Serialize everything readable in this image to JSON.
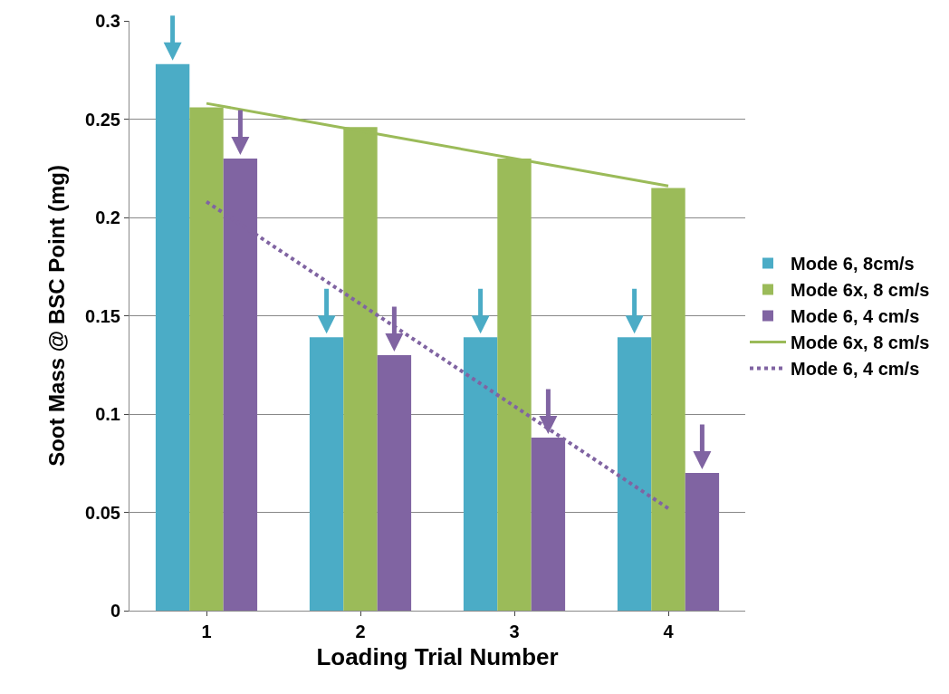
{
  "chart_data": {
    "type": "bar",
    "xlabel": "Loading Trial Number",
    "ylabel": "Soot Mass @ BSC Point (mg)",
    "categories": [
      "1",
      "2",
      "3",
      "4"
    ],
    "series": [
      {
        "name": "Mode 6, 8cm/s",
        "color": "#4bacc6",
        "values": [
          0.278,
          0.139,
          0.139,
          0.139
        ]
      },
      {
        "name": "Mode 6x, 8 cm/s",
        "color": "#9bbb59",
        "values": [
          0.256,
          0.246,
          0.23,
          0.215
        ]
      },
      {
        "name": "Mode 6, 4 cm/s",
        "color": "#8064a2",
        "values": [
          0.23,
          0.13,
          0.088,
          0.07
        ]
      },
      {
        "name": "Mode 6x, 8 cm/s",
        "color": "#9bbb59",
        "type": "line",
        "line_style": "solid",
        "values": [
          0.258,
          0.244,
          0.23,
          0.216
        ]
      },
      {
        "name": "Mode 6, 4 cm/s",
        "color": "#8064a2",
        "type": "line",
        "line_style": "dotted",
        "values": [
          0.208,
          0.156,
          0.104,
          0.052
        ]
      }
    ],
    "ylim": [
      0,
      0.3
    ],
    "yticks": [
      0,
      0.05,
      0.1,
      0.15,
      0.2,
      0.25,
      0.3
    ],
    "grid": "y",
    "legend": "right",
    "marker": "none"
  }
}
